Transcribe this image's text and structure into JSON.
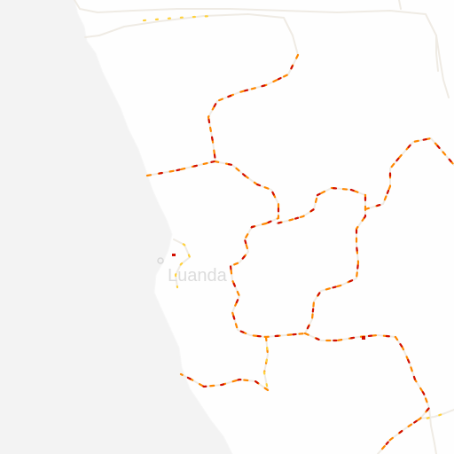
{
  "map": {
    "city_label": "Luanda",
    "colors": {
      "land": "#fefefe",
      "ocean": "#f3f3f3",
      "border_base": "#f1ede6",
      "border_red": "#d10e00",
      "border_orange": "#ff8800",
      "border_yellow": "#ffd13a"
    },
    "icons": {
      "city_marker": "circle-outline"
    }
  }
}
